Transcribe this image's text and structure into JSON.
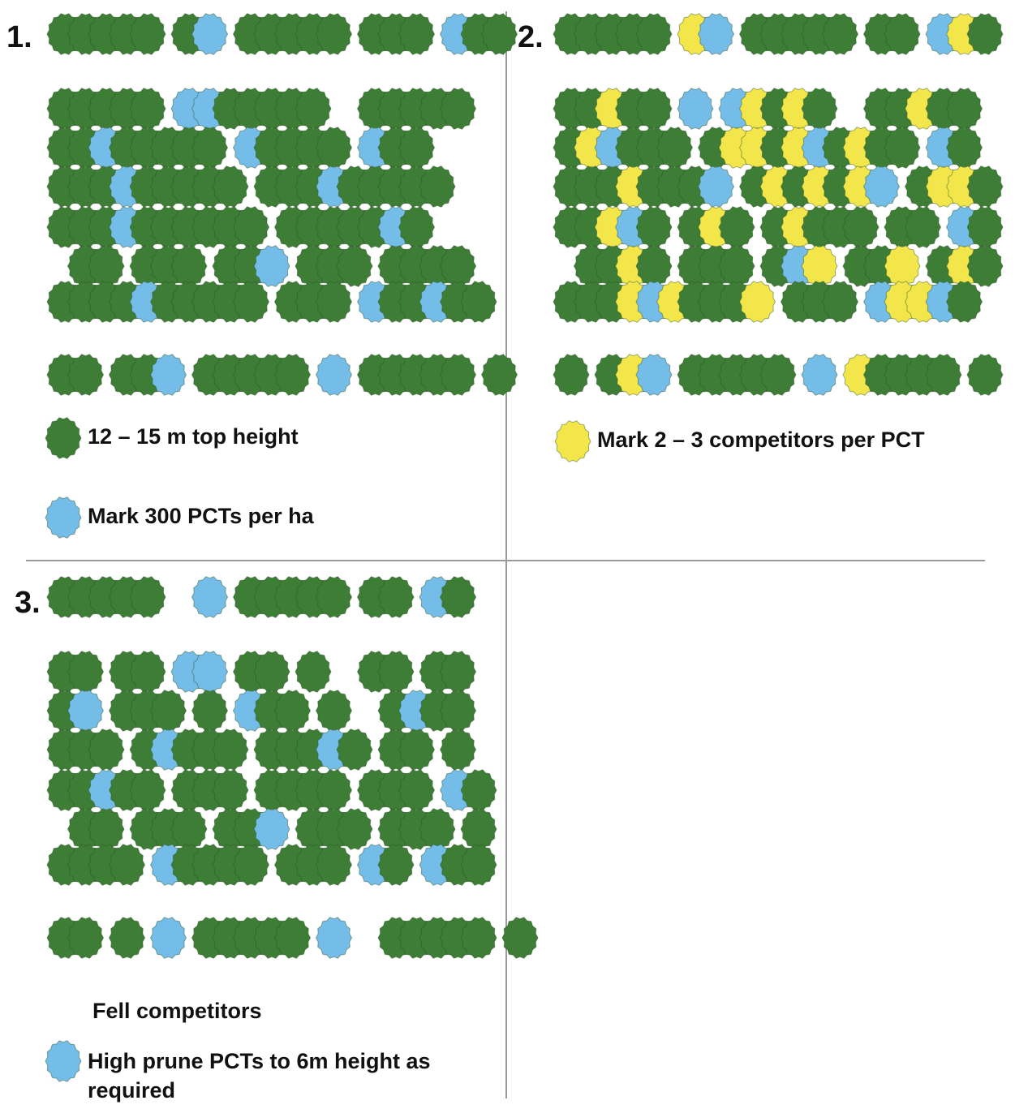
{
  "colors": {
    "green": "#3e7d36",
    "blue": "#74bde8",
    "yellow": "#f2e64a",
    "outline": "#2a4f26"
  },
  "panel1": {
    "number": "1.",
    "legend": [
      {
        "icon": "green",
        "text": "12 – 15 m top height"
      },
      {
        "icon": "blue",
        "text": "Mark 300 PCTs per ha"
      }
    ]
  },
  "panel2": {
    "number": "2.",
    "legend": [
      {
        "icon": "yellow",
        "text": "Mark 2 – 3 competitors per PCT"
      }
    ]
  },
  "panel3": {
    "number": "3.",
    "legend": [
      {
        "icon": "none",
        "text": "Fell competitors"
      },
      {
        "icon": "blue",
        "text": "High prune PCTs to 6m height as required"
      }
    ]
  },
  "stand_rows": {
    "panel1": [
      "GGGGG GB GGGGG GGG BGG",
      "GGGGG BBGGGGG  GGGGG",
      "GGBGGGGG BGGGG BGG",
      "GGGBGGGGG GGGBGGGGG",
      "GGGBGGGGGG GGGGGBG",
      " GG GGG GGB GGG GGGG",
      "GGGGBGGGGG GGG BGGBGG",
      "GG GGB GGGGG B GGGGG G"
    ],
    "panel2": [
      "GGGGG YB GGGGG GG BYG",
      "GGYGG B BYGYG  GGYGG",
      "GYBGGG GYYGYBGYGG BG",
      "GGGYGGGB GYGYGYB GYYG",
      "GGYBG GYG GYGGG GG BG",
      " GGYG GGG GBY GGY GYG",
      "GGGYBYGGGY GGG BYYBG",
      "G GYB GGGGG B YGGGG G"
    ],
    "panel3": [
      "GGGGG  B GGGGG GG BG",
      "GG GG BB GG G  GG GG",
      "GB GGG G BGG G  GBGG",
      "GGG GBGGG GGGBG GG G",
      "GGBGG GGG GGGG GGG BG",
      " GG GGG GGB GGG GGG G",
      "GGGG BGGGG GGG BG BGG",
      "GG G B GGGGG B  GGGGG G"
    ]
  }
}
